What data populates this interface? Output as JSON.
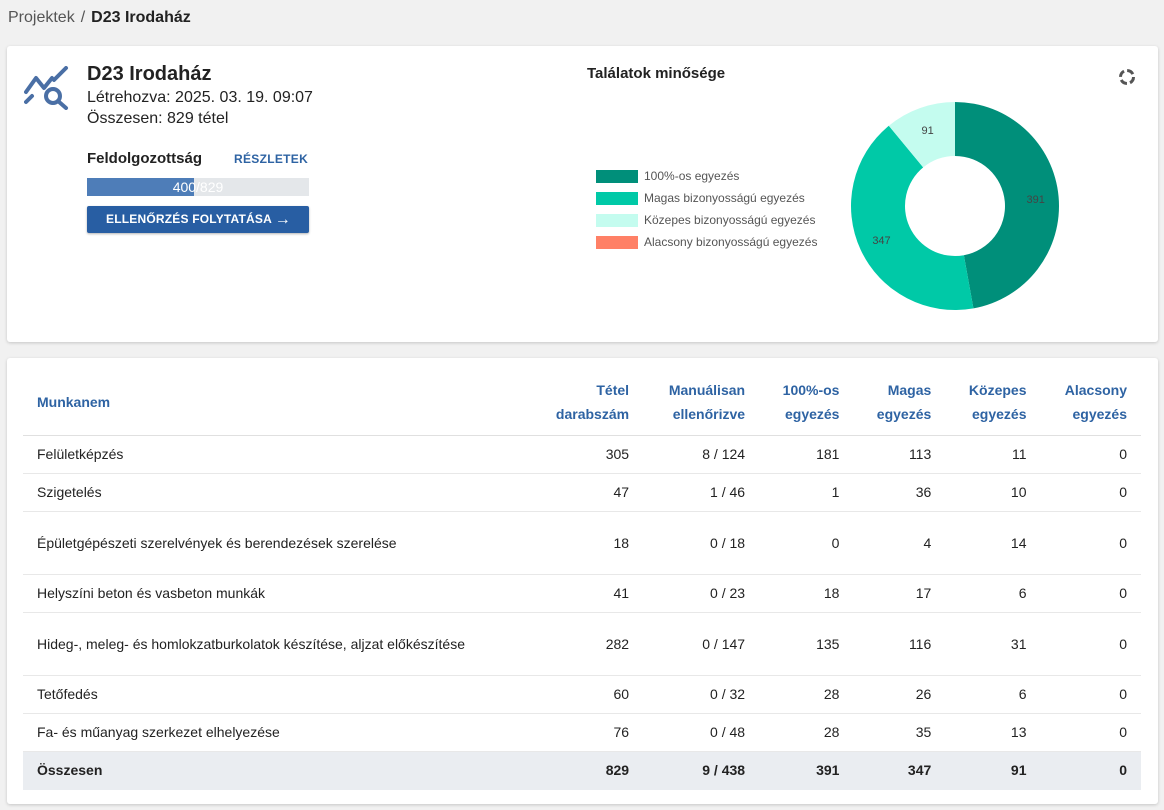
{
  "breadcrumb": {
    "root": "Projektek",
    "separator": "/",
    "current": "D23 Irodaház"
  },
  "project": {
    "title": "D23 Irodaház",
    "created": "Létrehozva: 2025. 03. 19. 09:07",
    "total": "Összesen: 829 tétel",
    "icon": "chart-search-icon"
  },
  "progress": {
    "label": "Feldolgozottság",
    "details_link": "RÉSZLETEK",
    "text": "400/829",
    "value": 400,
    "max": 829,
    "fill_fraction": 0.4825,
    "continue_button": "ELLENŐRZÉS FOLYTATÁSA",
    "continue_icon": "arrow-right-icon"
  },
  "chart_data": {
    "type": "pie",
    "title": "Találatok minősége",
    "donut": true,
    "categories": [
      "100%-os egyezés",
      "Magas bizonyosságú egyezés",
      "Közepes bizonyosságú egyezés",
      "Alacsony bizonyosságú egyezés"
    ],
    "values": [
      391,
      347,
      91,
      0
    ],
    "colors": [
      "#008f7a",
      "#00c9a7",
      "#c4fcef",
      "#ff8066"
    ],
    "value_labels": [
      "391",
      "347",
      "91",
      ""
    ],
    "legend_position": "left"
  },
  "chart_controls": {
    "refresh_icon": "refresh-icon"
  },
  "table": {
    "headers": [
      [
        "Munkanem",
        ""
      ],
      [
        "Tétel",
        "darabszám"
      ],
      [
        "Manuálisan",
        "ellenőrizve"
      ],
      [
        "100%-os",
        "egyezés"
      ],
      [
        "Magas",
        "egyezés"
      ],
      [
        "Közepes",
        "egyezés"
      ],
      [
        "Alacsony",
        "egyezés"
      ]
    ],
    "rows": [
      [
        "Felületképzés",
        "305",
        "8 / 124",
        "181",
        "113",
        "11",
        "0"
      ],
      [
        "Szigetelés",
        "47",
        "1 / 46",
        "1",
        "36",
        "10",
        "0"
      ],
      [
        "Épületgépészeti szerelvények és berendezések szerelése",
        "18",
        "0 / 18",
        "0",
        "4",
        "14",
        "0"
      ],
      [
        "Helyszíni beton és vasbeton munkák",
        "41",
        "0 / 23",
        "18",
        "17",
        "6",
        "0"
      ],
      [
        "Hideg-, meleg- és homlokzatburkolatok készítése, aljzat előkészítése",
        "282",
        "0 / 147",
        "135",
        "116",
        "31",
        "0"
      ],
      [
        "Tetőfedés",
        "60",
        "0 / 32",
        "28",
        "26",
        "6",
        "0"
      ],
      [
        "Fa- és műanyag szerkezet elhelyezése",
        "76",
        "0 / 48",
        "28",
        "35",
        "13",
        "0"
      ]
    ],
    "total": [
      "Összesen",
      "829",
      "9 / 438",
      "391",
      "347",
      "91",
      "0"
    ]
  }
}
